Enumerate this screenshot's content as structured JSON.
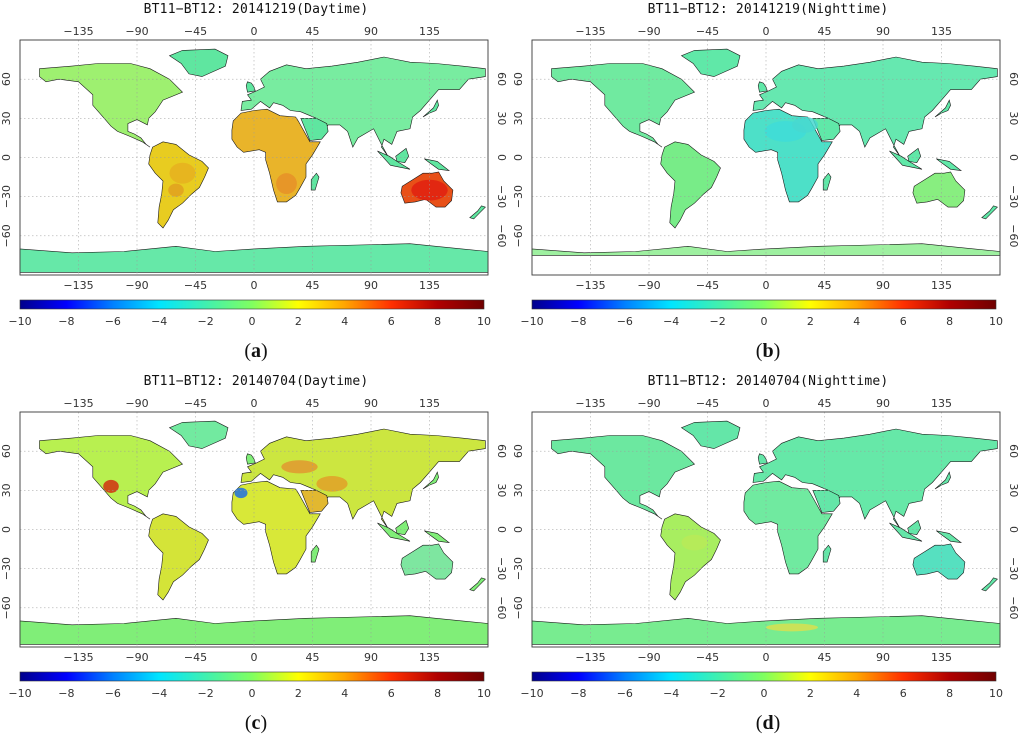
{
  "panels": [
    {
      "id": "a",
      "title": "BT11−BT12: 20141219(Daytime)",
      "caption_letter": "a"
    },
    {
      "id": "b",
      "title": "BT11−BT12: 20141219(Nighttime)",
      "caption_letter": "b"
    },
    {
      "id": "c",
      "title": "BT11−BT12: 20140704(Daytime)",
      "caption_letter": "c"
    },
    {
      "id": "d",
      "title": "BT11−BT12: 20140704(Nighttime)",
      "caption_letter": "d"
    }
  ],
  "axes": {
    "lon_ticks": [
      "−135",
      "−90",
      "−45",
      "0",
      "45",
      "90",
      "135"
    ],
    "lat_ticks": [
      "60",
      "30",
      "0",
      "−30",
      "−60"
    ]
  },
  "colorbar": {
    "ticks": [
      "−10",
      "−8",
      "−6",
      "−4",
      "−2",
      "0",
      "2",
      "4",
      "6",
      "8",
      "10"
    ],
    "colors": [
      "#00008b",
      "#0000ff",
      "#0080ff",
      "#00e5ff",
      "#40f0b0",
      "#80ff60",
      "#ffff00",
      "#ffa500",
      "#ff3000",
      "#b00000",
      "#700000"
    ]
  }
}
